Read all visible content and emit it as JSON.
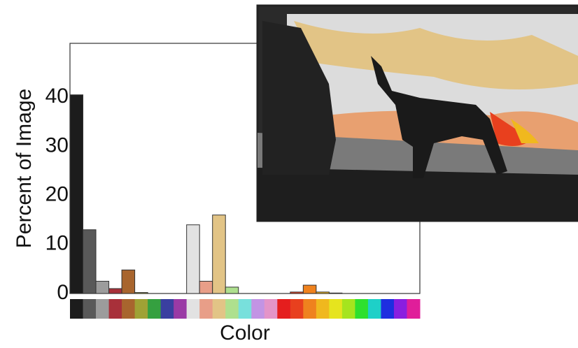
{
  "chart_data": {
    "type": "bar",
    "x_label": "Color",
    "y_label": "Percent of Image",
    "categories": [
      null,
      null,
      null,
      null,
      null,
      null,
      null,
      null,
      null,
      null,
      null,
      null,
      null,
      null,
      null,
      null,
      null,
      null,
      null,
      null,
      null,
      null,
      null,
      null,
      null,
      null,
      null
    ],
    "values": [
      40.5,
      13,
      2.5,
      1,
      4.8,
      0.2,
      0,
      0,
      0,
      14,
      2.5,
      16,
      1.3,
      0,
      0,
      0,
      0,
      0.3,
      1.7,
      0.3,
      0.1,
      0,
      0,
      0,
      0,
      0,
      0
    ],
    "colors": [
      "#1c1c1c",
      "#595959",
      "#9c9c9c",
      "#a8303a",
      "#a8652e",
      "#9fa235",
      "#35a040",
      "#3a3fa0",
      "#9a3aa5",
      "#e2e2e2",
      "#e89e88",
      "#e2c486",
      "#aee08e",
      "#78e0dc",
      "#c294e4",
      "#e494c8",
      "#e51e1e",
      "#e8401e",
      "#ef821e",
      "#f0b81e",
      "#e6e41e",
      "#a6e41e",
      "#2ee02e",
      "#1ed0c8",
      "#1e2ee0",
      "#8a1ee0",
      "#e01e9a"
    ],
    "ylim": [
      0,
      51
    ],
    "yticks": [
      0,
      10,
      20,
      30,
      40
    ]
  }
}
